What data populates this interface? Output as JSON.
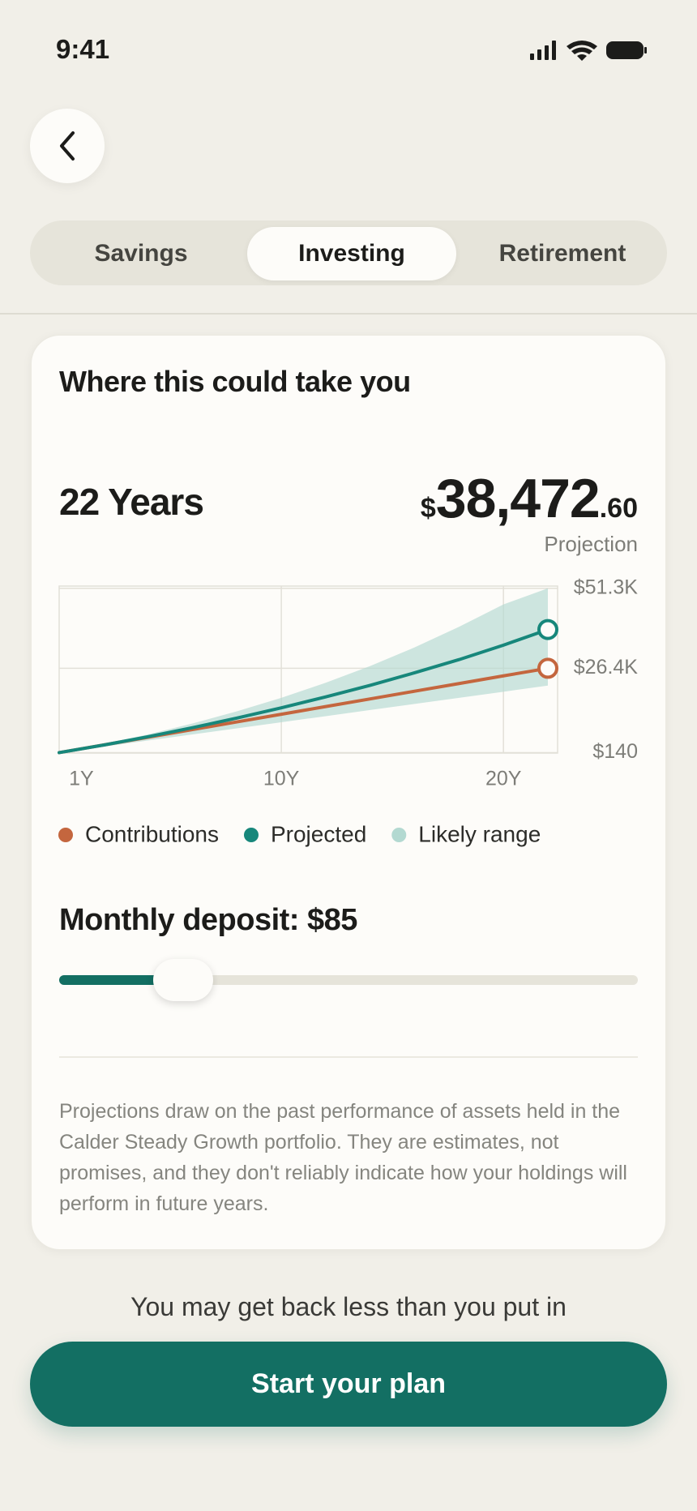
{
  "status": {
    "time": "9:41"
  },
  "tabs": {
    "items": [
      "Savings",
      "Investing",
      "Retirement"
    ],
    "active": 1
  },
  "card": {
    "title": "Where this could take you",
    "duration": "22 Years",
    "amount": {
      "currency": "$",
      "whole": "38,472",
      "cents": ".60"
    },
    "amount_label": "Projection",
    "deposit_label": "Monthly deposit: $85",
    "disclaimer": "Projections draw on the past performance of assets held in the Calder Steady Growth portfolio. They are estimates, not promises, and they don't reliably indicate how your holdings will perform in future years."
  },
  "chart_data": {
    "type": "line",
    "x": [
      0,
      2,
      4,
      6,
      8,
      10,
      12,
      14,
      16,
      18,
      20,
      22
    ],
    "xlim": [
      0,
      22
    ],
    "xticks": [
      {
        "value": 1,
        "label": "1Y"
      },
      {
        "value": 10,
        "label": "10Y"
      },
      {
        "value": 20,
        "label": "20Y"
      }
    ],
    "ylim": [
      0,
      52000
    ],
    "yticks": [
      {
        "value": 51300,
        "label": "$51.3K"
      },
      {
        "value": 26400,
        "label": "$26.4K"
      },
      {
        "value": 140,
        "label": "$140"
      }
    ],
    "grid": true,
    "series": [
      {
        "name": "Contributions",
        "color": "#c4663e",
        "values": [
          140,
          2530,
          4920,
          7310,
          9700,
          12090,
          14480,
          16870,
          19260,
          21650,
          24040,
          26400
        ]
      },
      {
        "name": "Projected",
        "color": "#17877b",
        "values": [
          140,
          2500,
          5100,
          7900,
          10900,
          14100,
          17500,
          21100,
          25000,
          29100,
          33600,
          38472.6
        ]
      },
      {
        "name": "Likely range",
        "color": "#b3d9d1",
        "upper": [
          140,
          2800,
          5800,
          9200,
          13000,
          17200,
          21900,
          27100,
          32900,
          39300,
          46300,
          51300
        ],
        "lower": [
          140,
          2000,
          3900,
          5800,
          7700,
          9600,
          11500,
          13400,
          15300,
          17200,
          19100,
          21000
        ]
      }
    ]
  },
  "footer": {
    "warning": "You may get back less than you put in",
    "button": "Start your plan"
  }
}
